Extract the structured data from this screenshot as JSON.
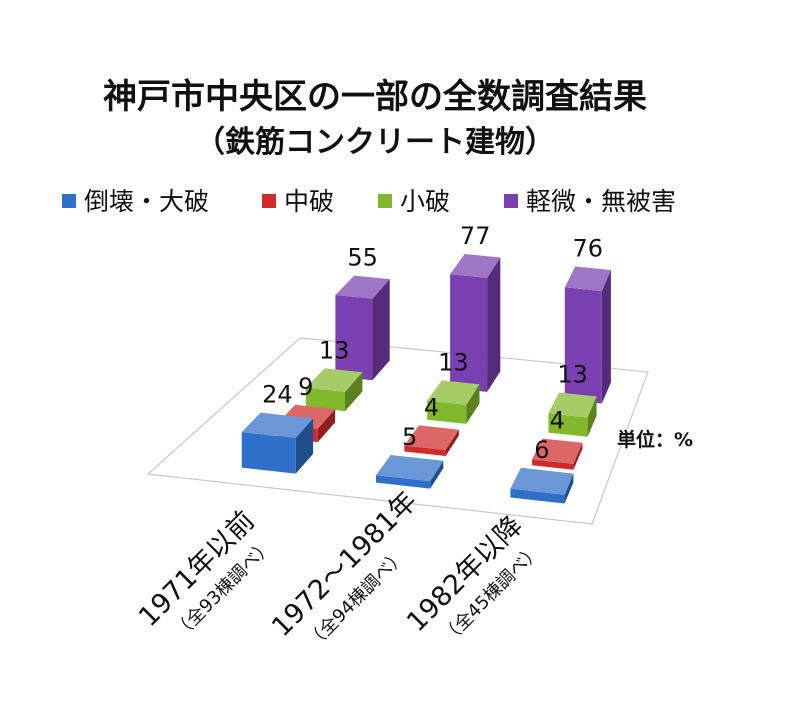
{
  "chart_data": {
    "type": "bar",
    "title": "神戸市中央区の一部の全数調査結果",
    "subtitle": "（鉄筋コンクリート建物）",
    "unit_label": "単位：%",
    "categories": [
      {
        "label": "1971年以前",
        "sublabel": "（全93棟調べ）"
      },
      {
        "label": "1972～1981年",
        "sublabel": "（全94棟調べ）"
      },
      {
        "label": "1982年以降",
        "sublabel": "（全45棟調べ）"
      }
    ],
    "series": [
      {
        "name": "倒壊・大破",
        "color": "#2E6FC9",
        "values": [
          24,
          5,
          6
        ]
      },
      {
        "name": "中破",
        "color": "#D02A2A",
        "values": [
          9,
          4,
          4
        ]
      },
      {
        "name": "小破",
        "color": "#82B82C",
        "values": [
          13,
          13,
          13
        ]
      },
      {
        "name": "軽微・無被害",
        "color": "#7A3FB0",
        "values": [
          55,
          77,
          76
        ]
      }
    ],
    "legend_position": "top"
  }
}
